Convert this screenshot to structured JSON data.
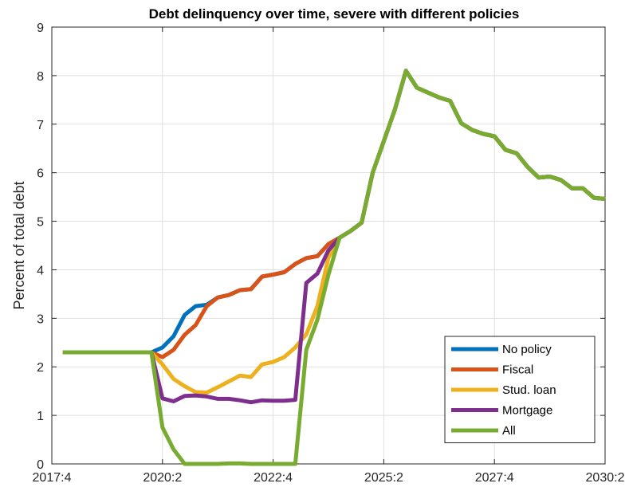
{
  "chart_data": {
    "type": "line",
    "title": "Debt delinquency over time, severe with different policies",
    "xlabel": "",
    "ylabel": "Percent of total debt",
    "xlim": [
      "2017:4",
      "2030:2"
    ],
    "ylim": [
      0,
      9
    ],
    "x_ticks": [
      "2017:4",
      "2020:2",
      "2022:4",
      "2025:2",
      "2027:4",
      "2030:2"
    ],
    "y_ticks": [
      0,
      1,
      2,
      3,
      4,
      5,
      6,
      7,
      8,
      9
    ],
    "grid": true,
    "legend_position": "bottom-right",
    "x": [
      "2018:1",
      "2018:2",
      "2018:3",
      "2018:4",
      "2019:1",
      "2019:2",
      "2019:3",
      "2019:4",
      "2020:1",
      "2020:2",
      "2020:3",
      "2020:4",
      "2021:1",
      "2021:2",
      "2021:3",
      "2021:4",
      "2022:1",
      "2022:2",
      "2022:3",
      "2022:4",
      "2023:1",
      "2023:2",
      "2023:3",
      "2023:4",
      "2024:1",
      "2024:2",
      "2024:3",
      "2024:4",
      "2025:1",
      "2025:2",
      "2025:3",
      "2025:4",
      "2026:1",
      "2026:2",
      "2026:3",
      "2026:4",
      "2027:1",
      "2027:2",
      "2027:3",
      "2027:4",
      "2028:1",
      "2028:2",
      "2028:3",
      "2028:4",
      "2029:1",
      "2029:2",
      "2029:3",
      "2029:4",
      "2030:1",
      "2030:2"
    ],
    "series": [
      {
        "name": "No policy",
        "color": "#0072BD",
        "values": [
          2.3,
          2.3,
          2.3,
          2.3,
          2.3,
          2.3,
          2.3,
          2.3,
          2.3,
          2.4,
          2.63,
          3.07,
          3.25,
          3.28,
          3.43,
          3.48,
          3.58,
          3.6,
          3.86,
          3.9,
          3.95,
          4.12,
          4.24,
          4.28,
          4.53,
          4.66,
          4.8,
          4.97,
          6.0,
          6.65,
          7.3,
          8.1,
          7.75,
          7.65,
          7.55,
          7.48,
          7.02,
          6.88,
          6.8,
          6.75,
          6.47,
          6.4,
          6.12,
          5.9,
          5.92,
          5.85,
          5.68,
          5.68,
          5.48,
          5.46
        ]
      },
      {
        "name": "Fiscal",
        "color": "#D95319",
        "values": [
          2.3,
          2.3,
          2.3,
          2.3,
          2.3,
          2.3,
          2.3,
          2.3,
          2.3,
          2.2,
          2.35,
          2.66,
          2.86,
          3.25,
          3.43,
          3.48,
          3.58,
          3.6,
          3.86,
          3.9,
          3.95,
          4.12,
          4.24,
          4.28,
          4.53,
          4.66,
          4.8,
          4.97,
          6.0,
          6.65,
          7.3,
          8.1,
          7.75,
          7.65,
          7.55,
          7.48,
          7.02,
          6.88,
          6.8,
          6.75,
          6.47,
          6.4,
          6.12,
          5.9,
          5.92,
          5.85,
          5.68,
          5.68,
          5.48,
          5.46
        ]
      },
      {
        "name": "Stud. loan",
        "color": "#EDB120",
        "values": [
          2.3,
          2.3,
          2.3,
          2.3,
          2.3,
          2.3,
          2.3,
          2.3,
          2.3,
          2.05,
          1.75,
          1.6,
          1.48,
          1.47,
          1.58,
          1.7,
          1.82,
          1.79,
          2.05,
          2.1,
          2.2,
          2.4,
          2.67,
          3.25,
          4.25,
          4.66,
          4.8,
          4.97,
          6.0,
          6.65,
          7.3,
          8.1,
          7.75,
          7.65,
          7.55,
          7.48,
          7.02,
          6.88,
          6.8,
          6.75,
          6.47,
          6.4,
          6.12,
          5.9,
          5.92,
          5.85,
          5.68,
          5.68,
          5.48,
          5.46
        ]
      },
      {
        "name": "Mortgage",
        "color": "#7E2F8E",
        "values": [
          2.3,
          2.3,
          2.3,
          2.3,
          2.3,
          2.3,
          2.3,
          2.3,
          2.3,
          1.35,
          1.29,
          1.4,
          1.41,
          1.39,
          1.34,
          1.34,
          1.31,
          1.27,
          1.31,
          1.3,
          1.3,
          1.32,
          3.73,
          3.92,
          4.4,
          4.66,
          4.8,
          4.97,
          6.0,
          6.65,
          7.3,
          8.1,
          7.75,
          7.65,
          7.55,
          7.48,
          7.02,
          6.88,
          6.8,
          6.75,
          6.47,
          6.4,
          6.12,
          5.9,
          5.92,
          5.85,
          5.68,
          5.68,
          5.48,
          5.46
        ]
      },
      {
        "name": "All",
        "color": "#77AC30",
        "values": [
          2.3,
          2.3,
          2.3,
          2.3,
          2.3,
          2.3,
          2.3,
          2.3,
          2.3,
          0.75,
          0.3,
          0.0,
          0.0,
          0.0,
          0.0,
          0.01,
          0.01,
          0.0,
          0.0,
          0.0,
          0.0,
          0.0,
          2.35,
          2.97,
          3.9,
          4.66,
          4.8,
          4.97,
          6.0,
          6.65,
          7.3,
          8.1,
          7.75,
          7.65,
          7.55,
          7.48,
          7.02,
          6.88,
          6.8,
          6.75,
          6.47,
          6.4,
          6.12,
          5.9,
          5.92,
          5.85,
          5.68,
          5.68,
          5.48,
          5.46
        ]
      }
    ]
  }
}
